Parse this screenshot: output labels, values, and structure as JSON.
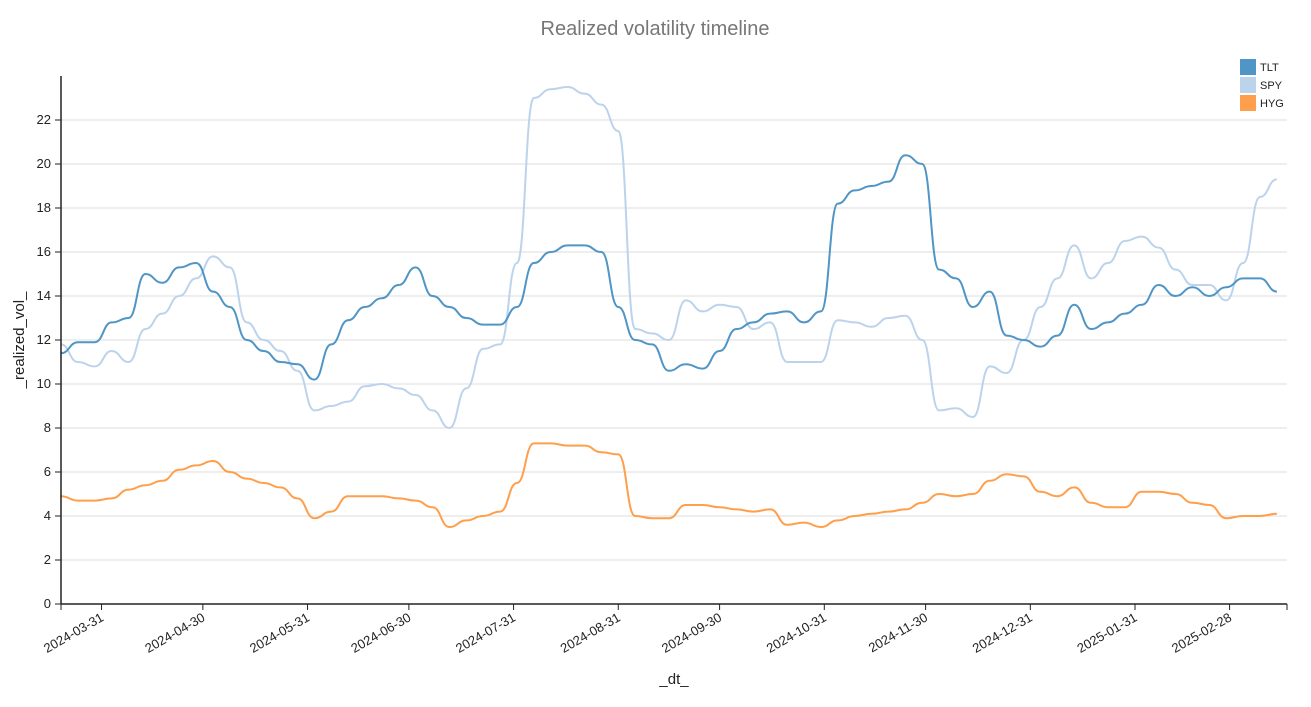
{
  "chart_data": {
    "type": "line",
    "title": "Realized volatility timeline",
    "xlabel": "_dt_",
    "ylabel": "_realized_vol_",
    "x_start": "2024-03-19",
    "x_step_days": 5,
    "xlim": [
      "2024-03-19",
      "2025-03-17"
    ],
    "ylim": [
      0,
      24
    ],
    "grid": "horizontal",
    "legend_position": "top-right",
    "yticks": [
      0,
      2,
      4,
      6,
      8,
      10,
      12,
      14,
      16,
      18,
      20,
      22
    ],
    "xticks": [
      "2024-03-31",
      "2024-04-30",
      "2024-05-31",
      "2024-06-30",
      "2024-07-31",
      "2024-08-31",
      "2024-09-30",
      "2024-10-31",
      "2024-11-30",
      "2024-12-31",
      "2025-01-31",
      "2025-02-28"
    ],
    "series": [
      {
        "name": "TLT",
        "color": "#4f95c5",
        "width": 2,
        "values": [
          11.4,
          11.9,
          11.9,
          12.8,
          13.0,
          15.0,
          14.6,
          15.3,
          15.5,
          14.2,
          13.5,
          12.0,
          11.5,
          11.0,
          10.9,
          10.2,
          11.8,
          12.9,
          13.5,
          13.9,
          14.5,
          15.3,
          14.0,
          13.5,
          13.0,
          12.7,
          12.7,
          13.5,
          15.5,
          16.0,
          16.3,
          16.3,
          16.0,
          13.5,
          12.0,
          11.8,
          10.6,
          10.9,
          10.7,
          11.5,
          12.5,
          12.8,
          13.2,
          13.3,
          12.8,
          13.3,
          18.2,
          18.8,
          19.0,
          19.2,
          20.4,
          20.0,
          15.2,
          14.8,
          13.5,
          14.2,
          12.2,
          12.0,
          11.7,
          12.2,
          13.6,
          12.5,
          12.8,
          13.2,
          13.6,
          14.5,
          14.0,
          14.4,
          14.0,
          14.4,
          14.8,
          14.8,
          14.2
        ]
      },
      {
        "name": "SPY",
        "color": "#bcd3ec",
        "width": 2,
        "values": [
          11.8,
          11.0,
          10.8,
          11.5,
          11.0,
          12.5,
          13.2,
          14.0,
          14.8,
          15.8,
          15.3,
          12.8,
          12.0,
          11.5,
          10.6,
          8.8,
          9.0,
          9.2,
          9.9,
          10.0,
          9.8,
          9.5,
          8.8,
          8.0,
          9.8,
          11.6,
          11.8,
          15.5,
          23.0,
          23.4,
          23.5,
          23.2,
          22.7,
          21.5,
          12.5,
          12.3,
          12.0,
          13.8,
          13.3,
          13.6,
          13.5,
          12.5,
          12.8,
          11.0,
          11.0,
          11.0,
          12.9,
          12.8,
          12.6,
          13.0,
          13.1,
          12.0,
          8.8,
          8.9,
          8.5,
          10.8,
          10.5,
          12.0,
          13.5,
          14.8,
          16.3,
          14.8,
          15.5,
          16.5,
          16.7,
          16.2,
          15.2,
          14.5,
          14.5,
          13.8,
          15.5,
          18.5,
          19.3
        ]
      },
      {
        "name": "HYG",
        "color": "#ff9f4b",
        "width": 2,
        "values": [
          4.9,
          4.7,
          4.7,
          4.8,
          5.2,
          5.4,
          5.6,
          6.1,
          6.3,
          6.5,
          6.0,
          5.7,
          5.5,
          5.3,
          4.8,
          3.9,
          4.2,
          4.9,
          4.9,
          4.9,
          4.8,
          4.7,
          4.4,
          3.5,
          3.8,
          4.0,
          4.2,
          5.5,
          7.3,
          7.3,
          7.2,
          7.2,
          6.9,
          6.8,
          4.0,
          3.9,
          3.9,
          4.5,
          4.5,
          4.4,
          4.3,
          4.2,
          4.3,
          3.6,
          3.7,
          3.5,
          3.8,
          4.0,
          4.1,
          4.2,
          4.3,
          4.6,
          5.0,
          4.9,
          5.0,
          5.6,
          5.9,
          5.8,
          5.1,
          4.9,
          5.3,
          4.6,
          4.4,
          4.4,
          5.1,
          5.1,
          5.0,
          4.6,
          4.5,
          3.9,
          4.0,
          4.0,
          4.1
        ]
      }
    ]
  }
}
